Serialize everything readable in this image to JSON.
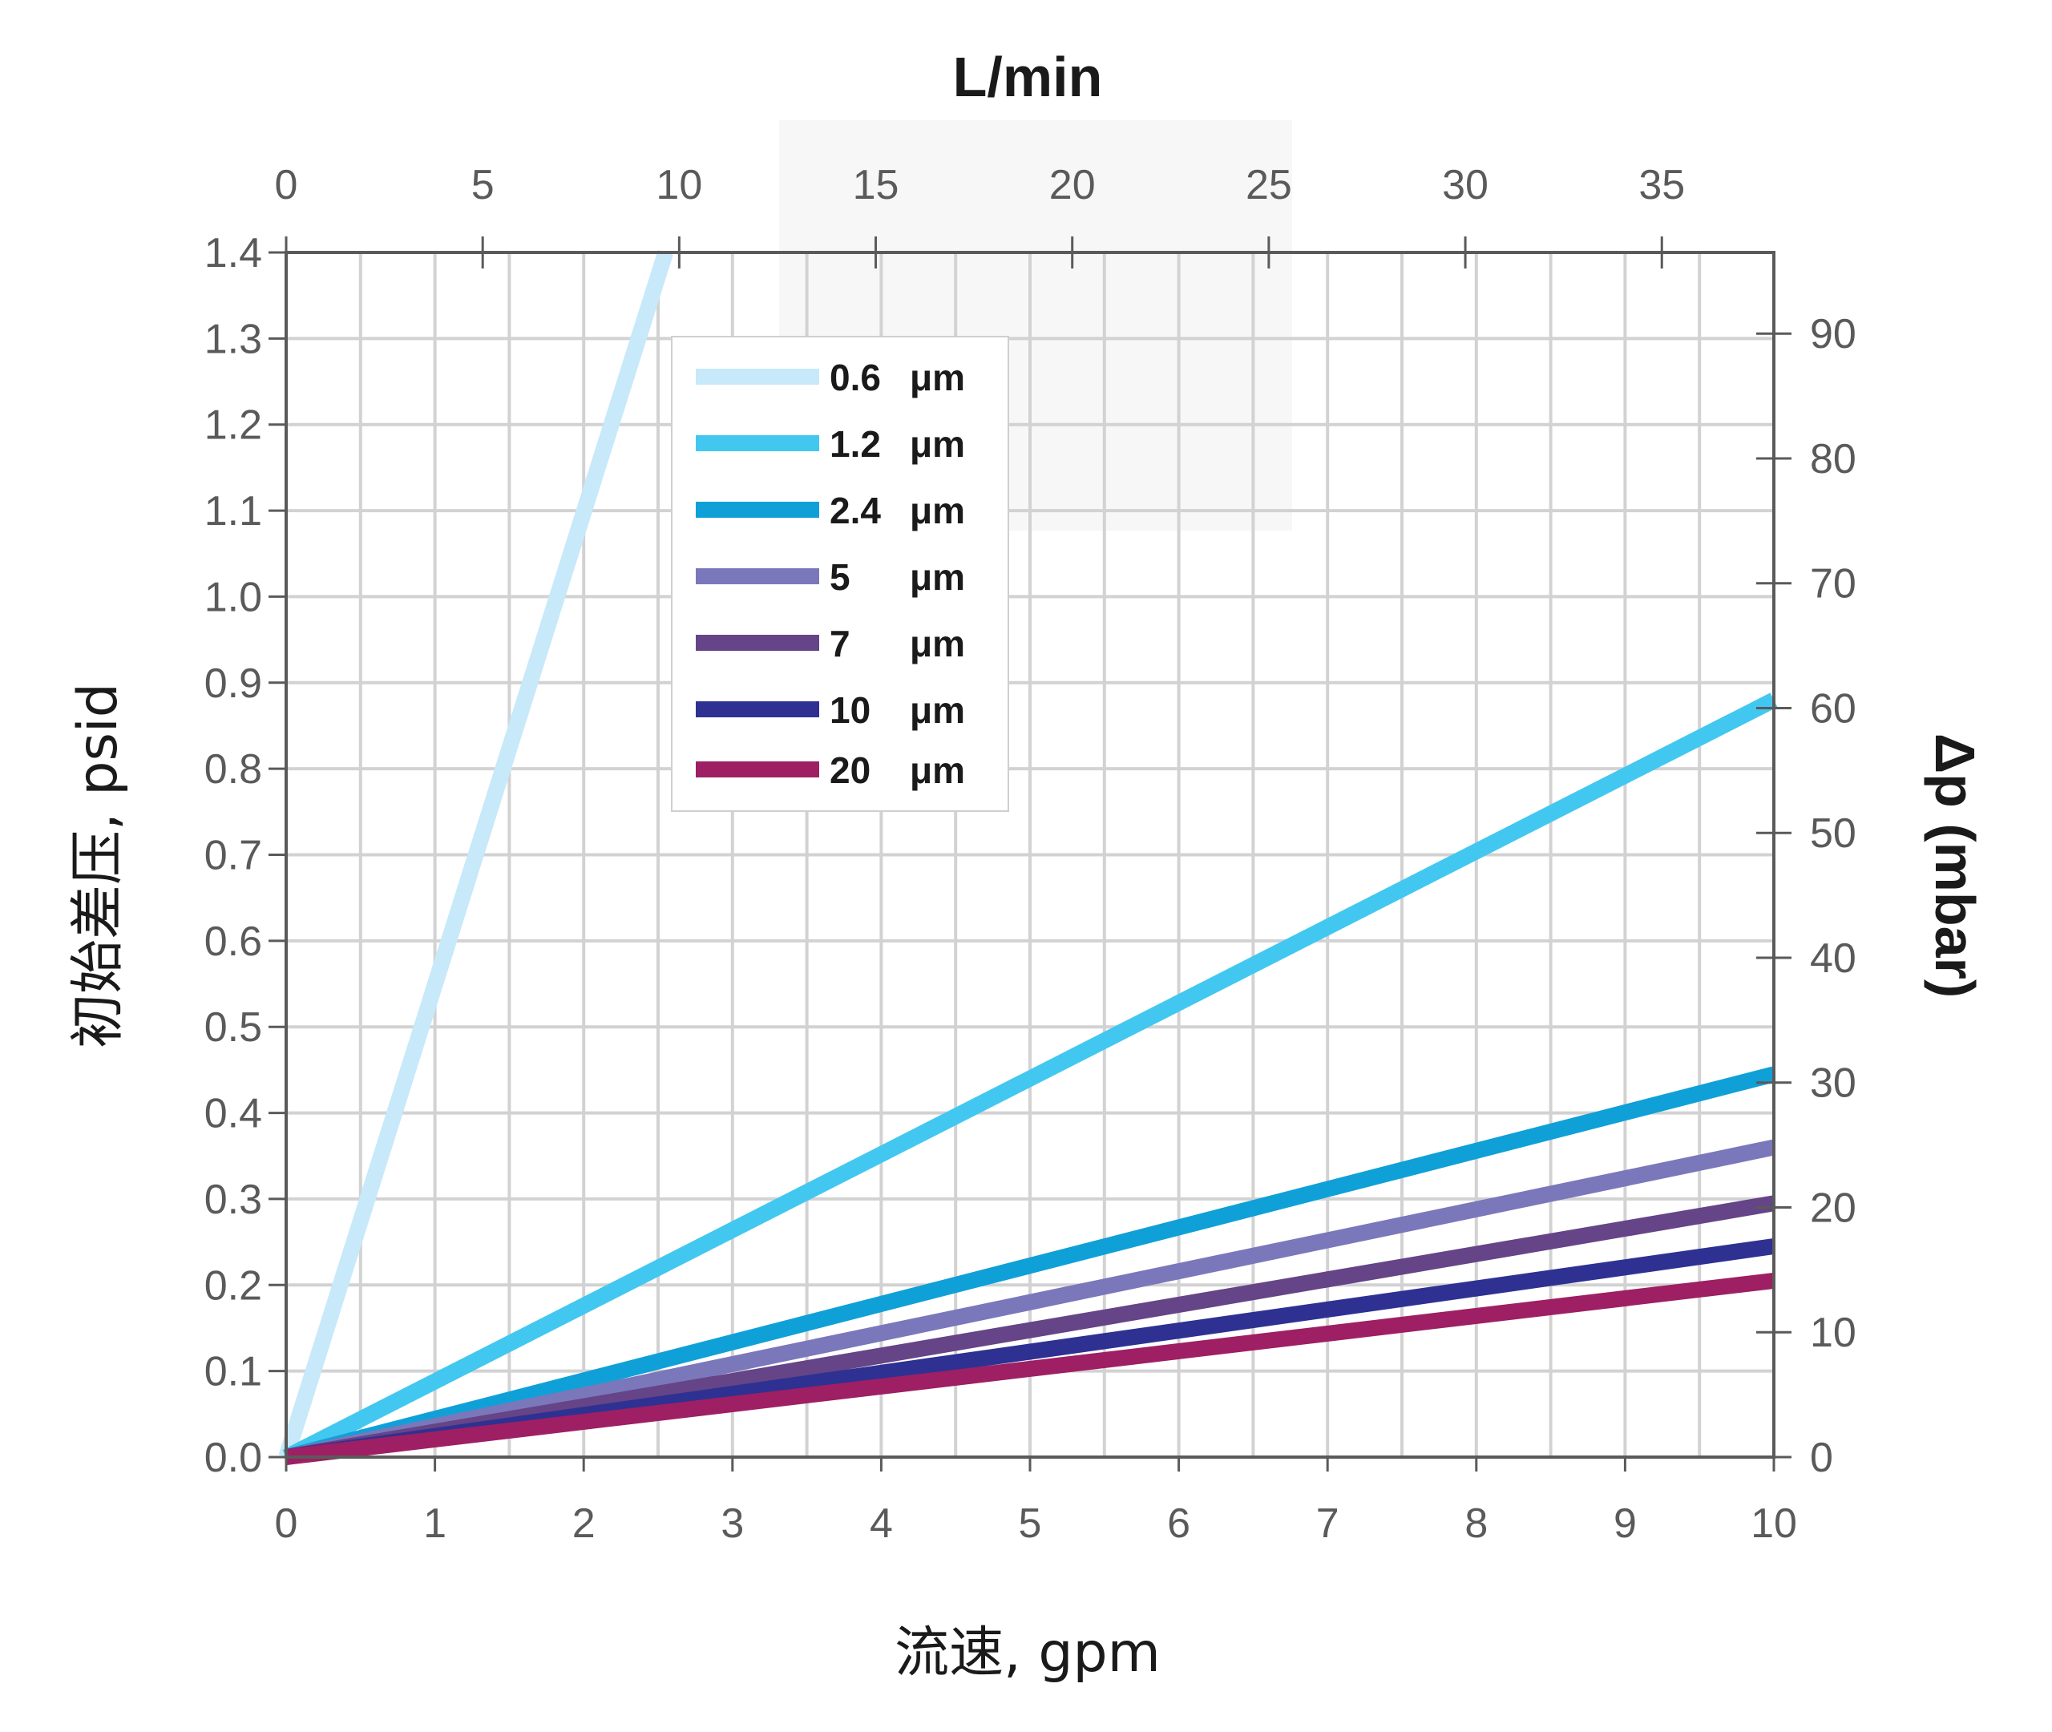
{
  "chart_data": {
    "type": "line",
    "x_label": "流速, gpm",
    "y_label": "初始差压, psid",
    "x2_label": "L/min",
    "y2_label": "Δp (mbar)",
    "xlim": [
      0,
      10
    ],
    "ylim": [
      0,
      1.4
    ],
    "x2lim": [
      0,
      37.85
    ],
    "y2lim": [
      0,
      96.5
    ],
    "x_ticks": [
      "0",
      "1",
      "2",
      "3",
      "4",
      "5",
      "6",
      "7",
      "8",
      "9",
      "10"
    ],
    "y_ticks": [
      "0.0",
      "0.1",
      "0.2",
      "0.3",
      "0.4",
      "0.5",
      "0.6",
      "0.7",
      "0.8",
      "0.9",
      "1.0",
      "1.1",
      "1.2",
      "1.3",
      "1.4"
    ],
    "x2_ticks": [
      "0",
      "5",
      "10",
      "15",
      "20",
      "25",
      "30",
      "35"
    ],
    "y2_ticks": [
      "0",
      "10",
      "20",
      "30",
      "40",
      "50",
      "60",
      "70",
      "80",
      "90"
    ],
    "grid": true,
    "legend_position": "top-left inside",
    "series": [
      {
        "name": "0.6",
        "unit": "μm",
        "color": "#c7e9fa",
        "x": [
          0,
          2.55
        ],
        "y": [
          0,
          1.4
        ]
      },
      {
        "name": "1.2",
        "unit": "μm",
        "color": "#42c8f0",
        "x": [
          0,
          10
        ],
        "y": [
          0,
          0.88
        ]
      },
      {
        "name": "2.4",
        "unit": "μm",
        "color": "#10a0d8",
        "x": [
          0,
          10
        ],
        "y": [
          0,
          0.445
        ]
      },
      {
        "name": "5",
        "unit": "μm",
        "color": "#7b77bb",
        "x": [
          0,
          10
        ],
        "y": [
          0,
          0.36
        ]
      },
      {
        "name": "7",
        "unit": "μm",
        "color": "#654487",
        "x": [
          0,
          10
        ],
        "y": [
          0,
          0.295
        ]
      },
      {
        "name": "10",
        "unit": "μm",
        "color": "#2e3192",
        "x": [
          0,
          10
        ],
        "y": [
          0,
          0.245
        ]
      },
      {
        "name": "20",
        "unit": "μm",
        "color": "#9e1f63",
        "x": [
          0,
          10
        ],
        "y": [
          0,
          0.205
        ]
      }
    ]
  }
}
